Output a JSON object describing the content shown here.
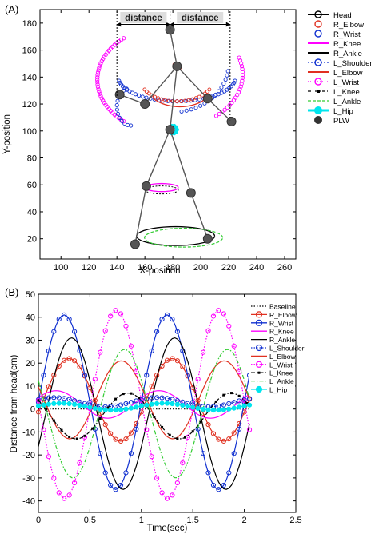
{
  "panel_a_label": "(A)",
  "panel_b_label": "(B)",
  "chart_data": [
    {
      "type": "scatter",
      "panel": "(A)",
      "title": "",
      "xlabel": "X-position",
      "ylabel": "Y-position",
      "xlim": [
        85,
        268
      ],
      "ylim": [
        5,
        190
      ],
      "xticks": [
        100,
        120,
        140,
        160,
        180,
        200,
        220,
        240,
        260
      ],
      "yticks": [
        20,
        40,
        60,
        80,
        100,
        120,
        140,
        160,
        180
      ],
      "distance_annotation": {
        "label": "distance",
        "x_left": 140,
        "x_mid": 178,
        "x_right": 221,
        "y": 176
      },
      "legend": [
        "Head",
        "R_Elbow",
        "R_Wrist",
        "R_Knee",
        "R_Ankle",
        "L_Shoulder",
        "L_Elbow",
        "L_Wrist",
        "L_Knee",
        "L_Ankle",
        "L_Hip",
        "PLW"
      ],
      "legend_colors": [
        "#000000",
        "#e03020",
        "#1030d0",
        "#ff00ff",
        "#000000",
        "#1030d0",
        "#e03020",
        "#ff00ff",
        "#000000",
        "#33cc33",
        "#00e5ee",
        "#000000"
      ],
      "plw_points": [
        {
          "name": "Head",
          "x": 178,
          "y": 175
        },
        {
          "name": "Shoulder",
          "x": 183,
          "y": 148
        },
        {
          "name": "L_Elbow",
          "x": 160,
          "y": 120
        },
        {
          "name": "R_Elbow",
          "x": 205,
          "y": 124
        },
        {
          "name": "L_Wrist",
          "x": 142,
          "y": 127
        },
        {
          "name": "R_Wrist",
          "x": 222,
          "y": 107
        },
        {
          "name": "Hip",
          "x": 178,
          "y": 101
        },
        {
          "name": "L_Knee",
          "x": 161,
          "y": 59
        },
        {
          "name": "R_Knee",
          "x": 193,
          "y": 54
        },
        {
          "name": "L_Ankle",
          "x": 153,
          "y": 16
        },
        {
          "name": "R_Ankle",
          "x": 205,
          "y": 20
        }
      ],
      "skeleton_edges": [
        [
          "Head",
          "Shoulder"
        ],
        [
          "Shoulder",
          "L_Elbow"
        ],
        [
          "L_Elbow",
          "L_Wrist"
        ],
        [
          "Shoulder",
          "R_Elbow"
        ],
        [
          "R_Elbow",
          "R_Wrist"
        ],
        [
          "Shoulder",
          "Hip"
        ],
        [
          "Hip",
          "L_Knee"
        ],
        [
          "L_Knee",
          "L_Ankle"
        ],
        [
          "Hip",
          "R_Knee"
        ],
        [
          "R_Knee",
          "R_Ankle"
        ]
      ]
    },
    {
      "type": "line",
      "panel": "(B)",
      "title": "",
      "xlabel": "Time(sec)",
      "ylabel": "Distance from head(cm)",
      "xlim": [
        0,
        2.5
      ],
      "ylim": [
        -45,
        50
      ],
      "xticks": [
        0,
        0.5,
        1,
        1.5,
        2,
        2.5
      ],
      "yticks": [
        -40,
        -30,
        -20,
        -10,
        0,
        10,
        20,
        30,
        40,
        50
      ],
      "series": [
        {
          "name": "Baseline",
          "color": "#000000",
          "style": "dotted",
          "marker": "none",
          "offset": 0,
          "amp": 0,
          "phase": 0
        },
        {
          "name": "R_Elbow",
          "color": "#e03020",
          "style": "solid",
          "marker": "circle",
          "offset": 4,
          "amp": 18,
          "phase": -0.3
        },
        {
          "name": "R_Wrist",
          "color": "#1030d0",
          "style": "solid",
          "marker": "circle",
          "offset": 3,
          "amp": 38,
          "phase": 0
        },
        {
          "name": "R_Knee",
          "color": "#ff00ff",
          "style": "solid",
          "marker": "none",
          "offset": 2,
          "amp": 6,
          "phase": 0.5
        },
        {
          "name": "R_Ankle",
          "color": "#000000",
          "style": "solid",
          "marker": "none",
          "offset": -2,
          "amp": 33,
          "phase": -0.45
        },
        {
          "name": "L_Shoulder",
          "color": "#1030d0",
          "style": "dotted",
          "marker": "circle",
          "offset": 3,
          "amp": 2,
          "phase": 0.6
        },
        {
          "name": "L_Elbow",
          "color": "#e03020",
          "style": "solid",
          "marker": "none",
          "offset": 4,
          "amp": 17,
          "phase": 2.8
        },
        {
          "name": "L_Wrist",
          "color": "#ff00ff",
          "style": "dotted",
          "marker": "circle",
          "offset": 2,
          "amp": 41,
          "phase": 3.1
        },
        {
          "name": "L_Knee",
          "color": "#000000",
          "style": "dashdot",
          "marker": "dot",
          "offset": -3,
          "amp": 10,
          "phase": 2.4
        },
        {
          "name": "L_Ankle",
          "color": "#33cc33",
          "style": "dashdot",
          "marker": "none",
          "offset": -2,
          "amp": 28,
          "phase": 2.6
        },
        {
          "name": "L_Hip",
          "color": "#00e5ee",
          "style": "solid",
          "marker": "circle",
          "offset": 1,
          "amp": 1.5,
          "phase": 0.2
        }
      ],
      "x_range": [
        0,
        2.05
      ],
      "frequency_hz": 1
    }
  ]
}
